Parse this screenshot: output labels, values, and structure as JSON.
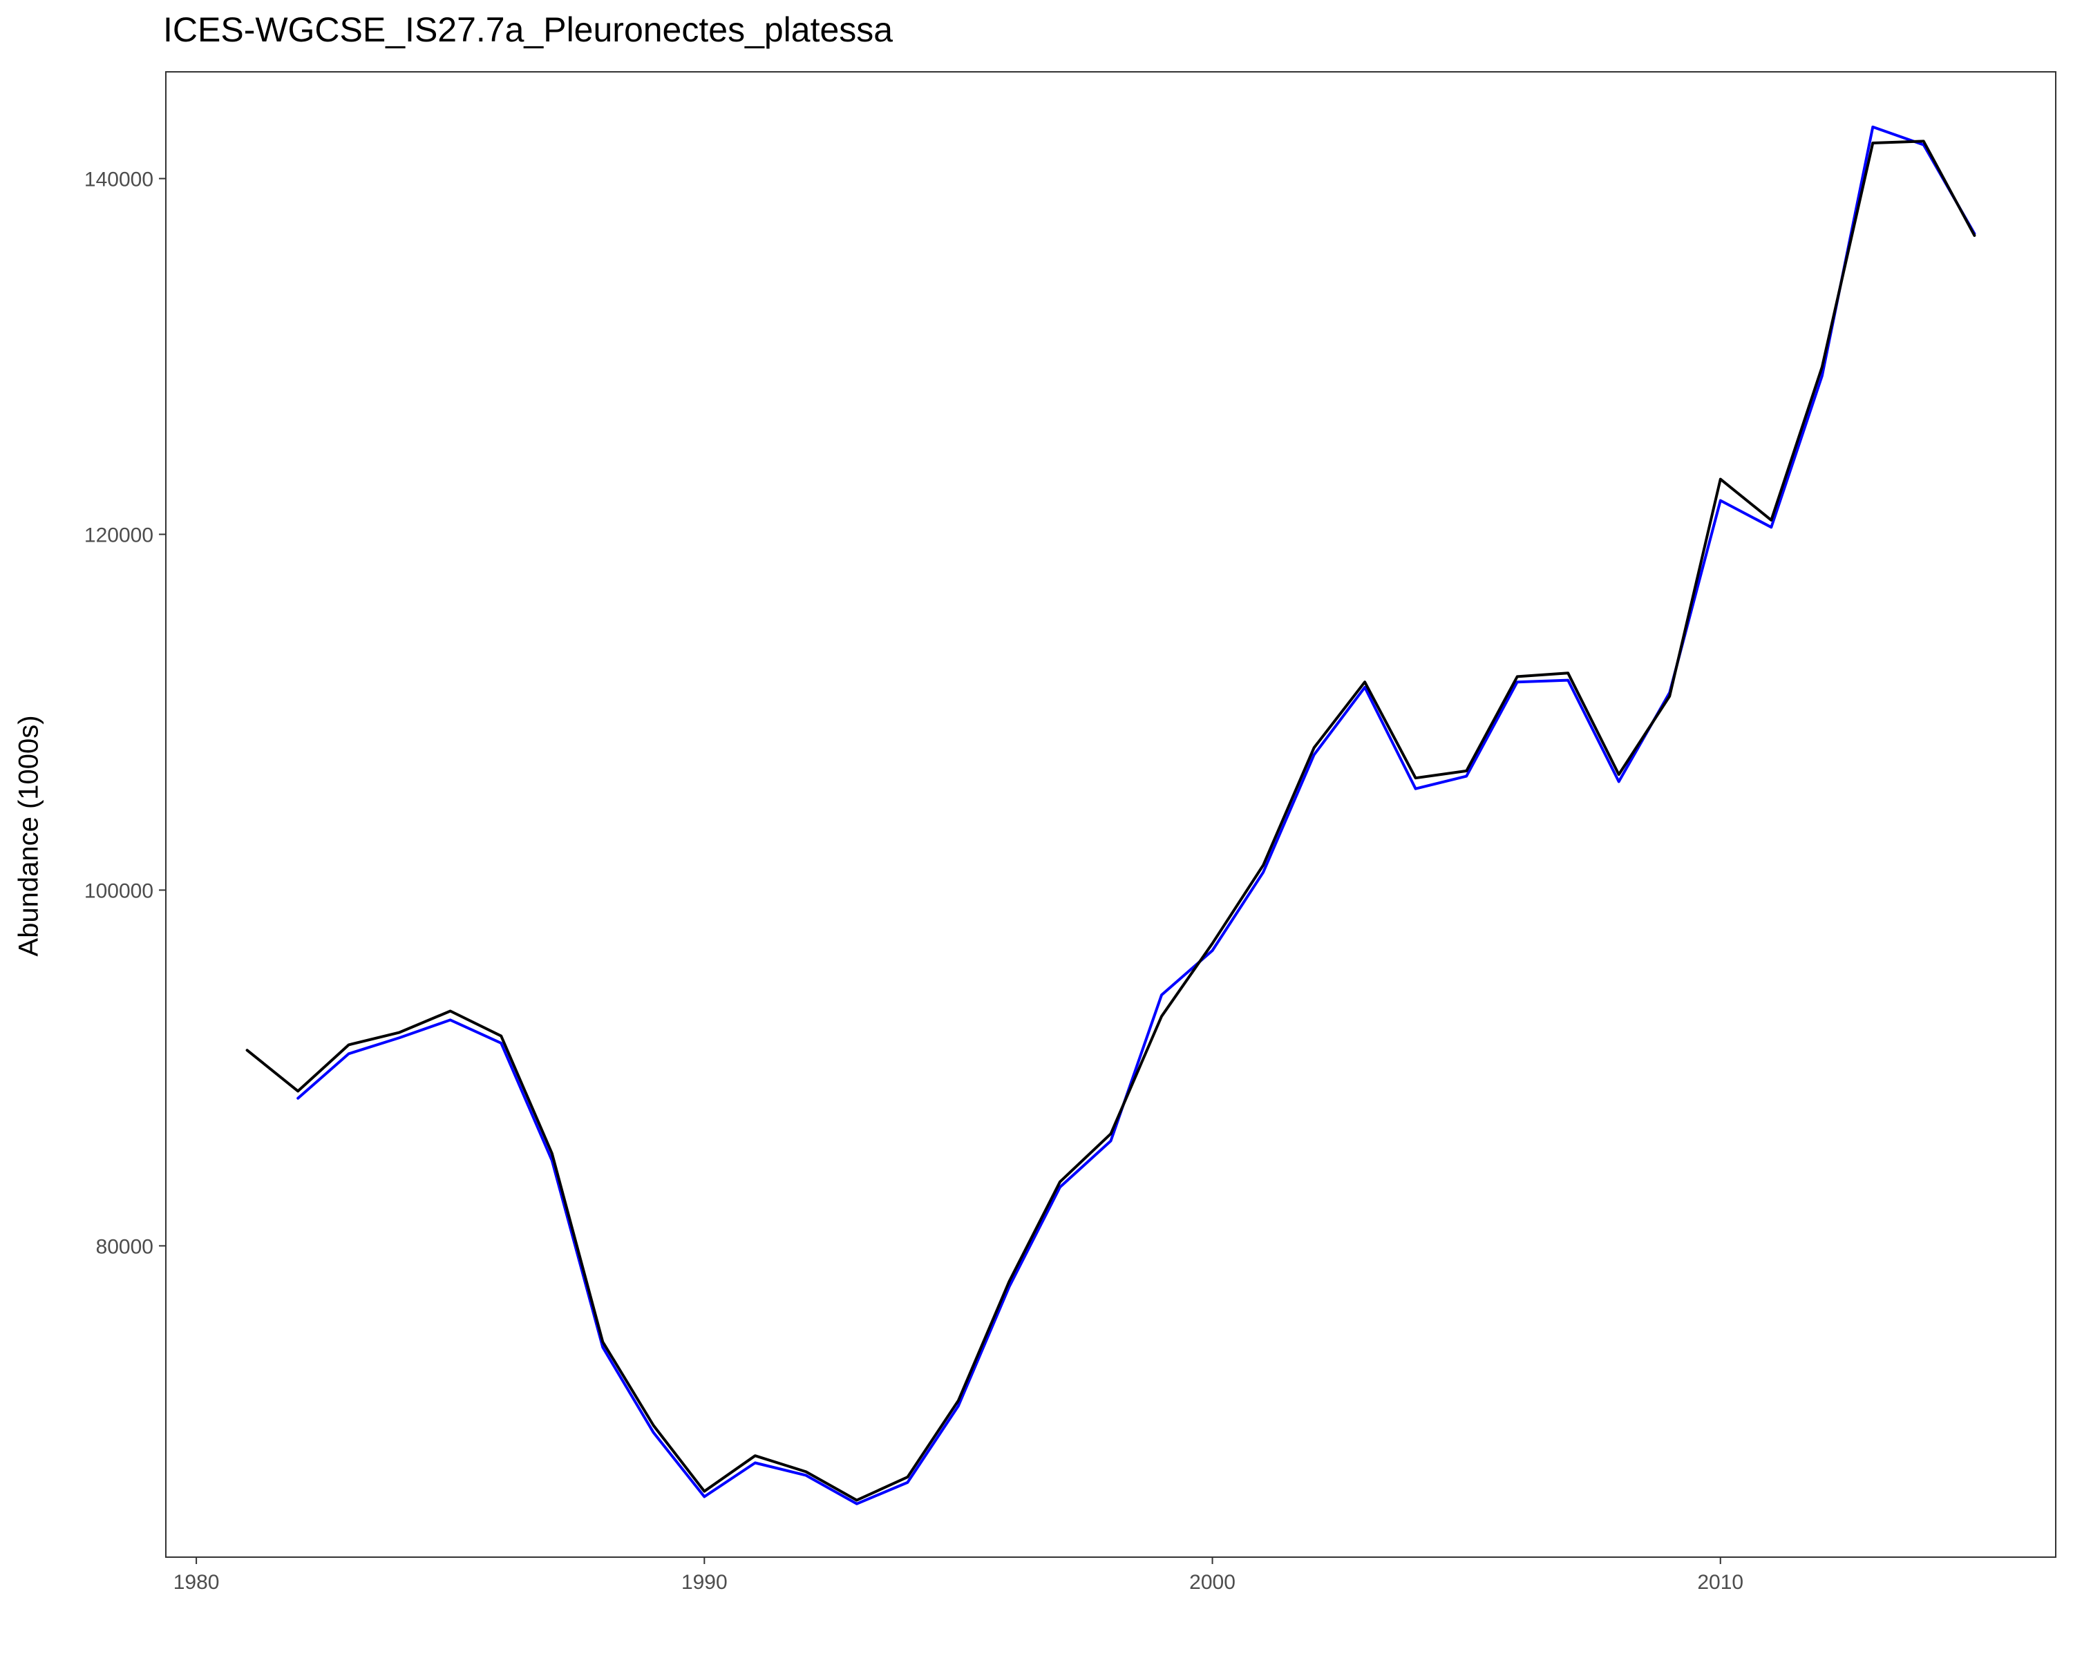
{
  "chart_data": {
    "type": "line",
    "title": "ICES-WGCSE_IS27.7a_Pleuronectes_platessa",
    "xlabel": "",
    "ylabel": "Abundance (1000s)",
    "xlim": [
      1979.4,
      2016.6
    ],
    "ylim": [
      62500,
      146000
    ],
    "x_ticks": [
      1980,
      1990,
      2000,
      2010
    ],
    "y_ticks": [
      80000,
      100000,
      120000,
      140000
    ],
    "grid": false,
    "series": [
      {
        "color": "#0000ff",
        "x": [
          1982,
          1983,
          1984,
          1985,
          1986,
          1987,
          1988,
          1989,
          1990,
          1991,
          1992,
          1993,
          1994,
          1995,
          1996,
          1997,
          1998,
          1999,
          2000,
          2001,
          2002,
          2003,
          2004,
          2005,
          2006,
          2007,
          2008,
          2009,
          2010,
          2011,
          2012,
          2013,
          2014,
          2015
        ],
        "values": [
          88300,
          90800,
          91700,
          92700,
          91400,
          84800,
          74300,
          69500,
          65900,
          67800,
          67100,
          65500,
          66700,
          71000,
          77700,
          83300,
          85900,
          94100,
          96600,
          101000,
          107600,
          111400,
          105700,
          106400,
          111700,
          111800,
          106100,
          111100,
          121900,
          120400,
          128900,
          142900,
          141900,
          136900
        ]
      },
      {
        "color": "#000000",
        "x": [
          1981,
          1982,
          1983,
          1984,
          1985,
          1986,
          1987,
          1988,
          1989,
          1990,
          1991,
          1992,
          1993,
          1994,
          1995,
          1996,
          1997,
          1998,
          1999,
          2000,
          2001,
          2002,
          2003,
          2004,
          2005,
          2006,
          2007,
          2008,
          2009,
          2010,
          2011,
          2012,
          2013,
          2014,
          2015
        ],
        "values": [
          91000,
          88700,
          91300,
          92000,
          93200,
          91800,
          85200,
          74600,
          69900,
          66200,
          68200,
          67300,
          65700,
          67000,
          71300,
          78000,
          83600,
          86300,
          92900,
          97000,
          101400,
          108000,
          111700,
          106300,
          106700,
          112000,
          112200,
          106500,
          110900,
          123100,
          120800,
          129400,
          142000,
          142100,
          136800
        ]
      }
    ]
  }
}
